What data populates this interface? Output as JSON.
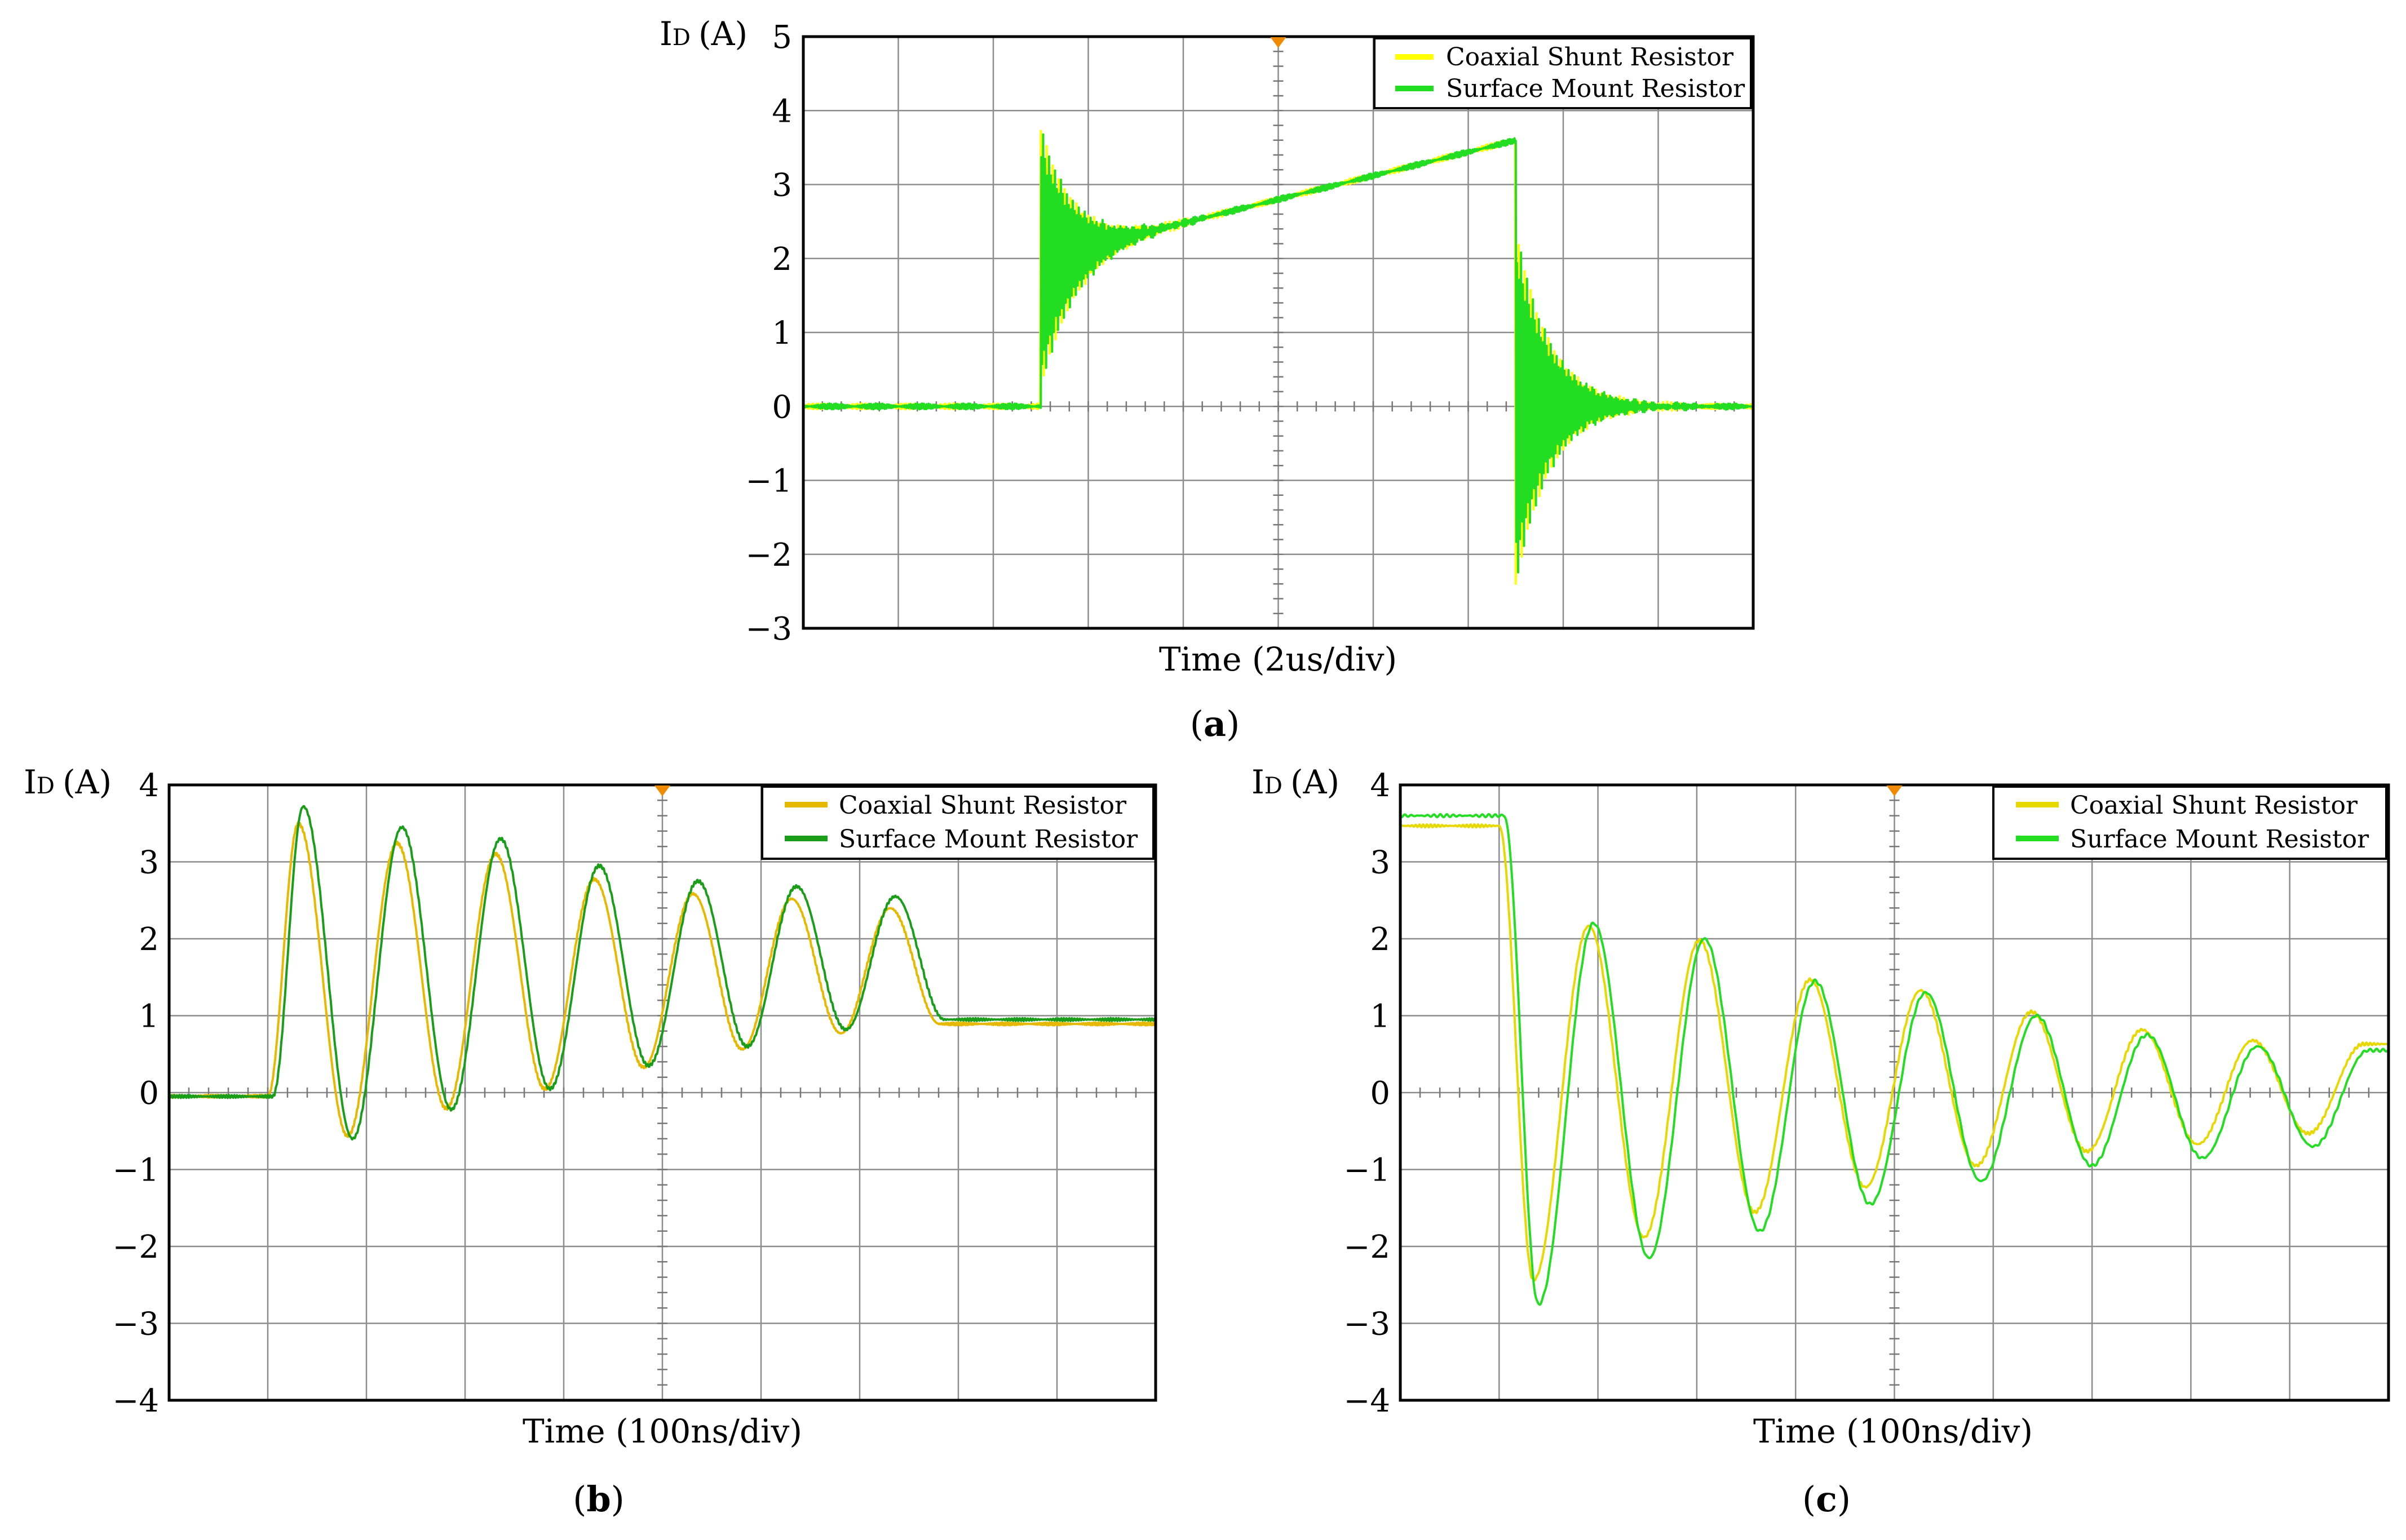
{
  "chart_data": [
    {
      "id": "a",
      "type": "line",
      "panel_label": "a",
      "ylabel_main": "I",
      "ylabel_sub": "D",
      "ylabel_unit": "(A)",
      "xlabel": "Time (2us/div)",
      "ylim": [
        -3,
        5
      ],
      "y_ticks": [
        "5",
        "4",
        "3",
        "2",
        "1",
        "0",
        "−1",
        "−2",
        "−3"
      ],
      "x_divisions": 10,
      "trigger_marker_div": 5,
      "legend_position": "top-right",
      "series": [
        {
          "name": "Coaxial Shunt Resistor",
          "color": "#ffff00"
        },
        {
          "name": "Surface Mount Resistor",
          "color": "#22dd22"
        }
      ],
      "signal": {
        "kind": "pulse",
        "on_div": 2.5,
        "off_div": 7.5,
        "level_start": 2.0,
        "level_end": 3.6,
        "spike_on": 3.75,
        "spike_off": -2.8,
        "ringing_freq_per_div": 8,
        "decay_div": 0.35
      }
    },
    {
      "id": "b",
      "type": "line",
      "panel_label": "b",
      "ylabel_main": "I",
      "ylabel_sub": "D",
      "ylabel_unit": "(A)",
      "xlabel": "Time (100ns/div)",
      "ylim": [
        -4,
        4
      ],
      "y_ticks": [
        "4",
        "3",
        "2",
        "1",
        "0",
        "−1",
        "−2",
        "−3",
        "−4"
      ],
      "x_divisions": 10,
      "trigger_marker_div": 5,
      "legend_position": "top-right",
      "series": [
        {
          "name": "Coaxial Shunt Resistor",
          "color": "#e6b800"
        },
        {
          "name": "Surface Mount Resistor",
          "color": "#1a9e1a"
        }
      ],
      "peaks": [
        3.72,
        3.45,
        3.3,
        2.95,
        2.75,
        2.68,
        2.55
      ],
      "troughs": [
        -0.6,
        -0.22,
        0.05,
        0.35,
        0.6,
        0.82,
        0.95
      ],
      "signal": {
        "kind": "turn-on",
        "start_div": 1.05,
        "period_div": 1.0,
        "baseline": -0.05
      }
    },
    {
      "id": "c",
      "type": "line",
      "panel_label": "c",
      "ylabel_main": "I",
      "ylabel_sub": "D",
      "ylabel_unit": "(A)",
      "xlabel": "Time (100ns/div)",
      "ylim": [
        -4,
        4
      ],
      "y_ticks": [
        "4",
        "3",
        "2",
        "1",
        "0",
        "−1",
        "−2",
        "−3",
        "−4"
      ],
      "x_divisions": 10,
      "trigger_marker_div": 5,
      "legend_position": "top-right",
      "series": [
        {
          "name": "Coaxial Shunt Resistor",
          "color": "#e6d800"
        },
        {
          "name": "Surface Mount Resistor",
          "color": "#22dd22"
        }
      ],
      "troughs": [
        -2.75,
        -2.15,
        -1.8,
        -1.45,
        -1.15,
        -0.95,
        -0.85,
        -0.7
      ],
      "peaks": [
        2.2,
        2.0,
        1.45,
        1.3,
        1.0,
        0.75,
        0.6,
        0.55
      ],
      "signal": {
        "kind": "turn-off",
        "start_div": 1.05,
        "period_div": 1.12,
        "baseline": 3.6
      }
    }
  ]
}
